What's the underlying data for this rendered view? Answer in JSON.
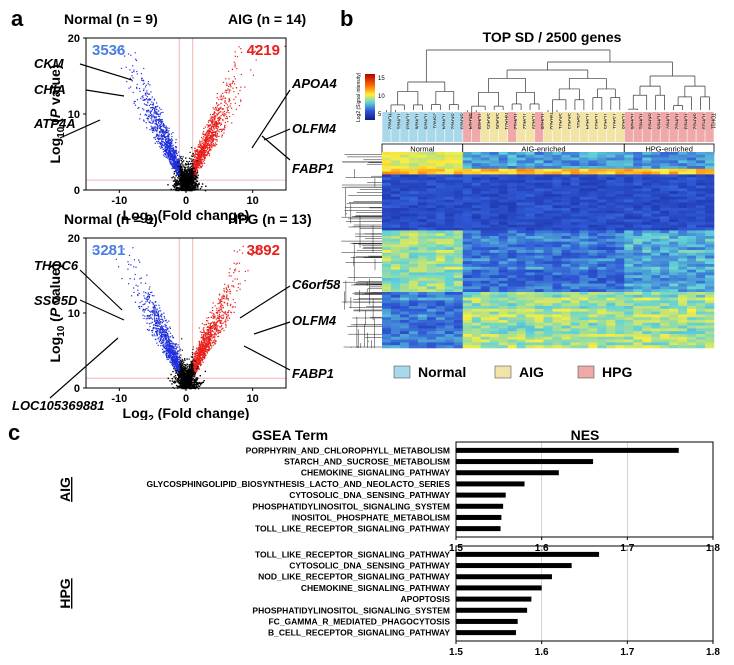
{
  "panel_letters": {
    "a": "a",
    "b": "b",
    "c": "c"
  },
  "panel_a": {
    "plots": [
      {
        "group_left": "Normal (n = 9)",
        "group_right": "AIG (n = 14)",
        "count_down": "3536",
        "count_up": "4219",
        "genes_left": [
          "CKM",
          "CHIA",
          "ATP4A"
        ],
        "genes_right": [
          "APOA4",
          "OLFM4",
          "FABP1"
        ],
        "seed": 11
      },
      {
        "group_left": "Normal (n = 9)",
        "group_right": "HPG (n = 13)",
        "count_down": "3281",
        "count_up": "3892",
        "genes_left": [
          "THOC6",
          "SSC5D",
          "LOC105369881"
        ],
        "genes_right": [
          "C6orf58",
          "OLFM4",
          "FABP1"
        ],
        "seed": 29
      }
    ],
    "y_ticks": [
      "0",
      "10",
      "20"
    ],
    "x_ticks": [
      "-10",
      "0",
      "10"
    ],
    "ylabel_prefix": "Log",
    "ylabel_sub": "10",
    "ylabel_mid": " (",
    "ylabel_italic": "P",
    "ylabel_suffix": " value)",
    "xlabel_prefix": "Log",
    "xlabel_sub": "2",
    "xlabel_suffix": " (Fold change)",
    "colors": {
      "down": "#1f2fdc",
      "up": "#e8201c",
      "ns": "#000000",
      "count_down": "#4a7fe0",
      "count_up": "#e8201c"
    }
  },
  "panel_b": {
    "title": "TOP SD / 2500 genes",
    "colorbar_label": "Log2 (Signal intensity)",
    "colorbar_ticks": [
      "15",
      "10",
      "5"
    ],
    "groups": [
      "Normal",
      "AIG-enriched",
      "HPG-enriched"
    ],
    "samples": [
      "TDN02",
      "TDN01",
      "TDN03",
      "TDN06",
      "TDN05",
      "JSN01",
      "TDN04",
      "SKN02",
      "SKN03",
      "SKH04",
      "TDH09",
      "SKA05",
      "SKA06",
      "NRA01",
      "TDH12",
      "TDA02",
      "TDA09",
      "TDH08",
      "NRA02",
      "SKA01",
      "SKA03",
      "JSA01",
      "TDA04",
      "TDA03",
      "TDA05",
      "TSA01",
      "TDA08",
      "TDH06",
      "TDH01",
      "SKH03",
      "TDH05",
      "TDH07",
      "TDH02",
      "TDH03",
      "SKH02",
      "TDH10",
      "TDH11"
    ],
    "legend": [
      {
        "label": "Normal",
        "color": "#a9d8ea"
      },
      {
        "label": "AIG",
        "color": "#f2e3a6"
      },
      {
        "label": "HPG",
        "color": "#f0a9a9"
      }
    ]
  },
  "panel_c": {
    "header_term": "GSEA Term",
    "header_nes": "NES",
    "x_ticks": [
      "1.5",
      "1.6",
      "1.7",
      "1.8"
    ],
    "x_range": [
      1.5,
      1.8
    ],
    "groups": [
      {
        "label": "AIG",
        "terms": [
          {
            "name": "PORPHYRIN_AND_CHLOROPHYLL_METABOLISM",
            "nes": 1.76
          },
          {
            "name": "STARCH_AND_SUCROSE_METABOLISM",
            "nes": 1.66
          },
          {
            "name": "CHEMOKINE_SIGNALING_PATHWAY",
            "nes": 1.62
          },
          {
            "name": "GLYCOSPHINGOLIPID_BIOSYNTHESIS_LACTO_AND_NEOLACTO_SERIES",
            "nes": 1.58
          },
          {
            "name": "CYTOSOLIC_DNA_SENSING_PATHWAY",
            "nes": 1.558
          },
          {
            "name": "PHOSPHATIDYLINOSITOL_SIGNALING_SYSTEM",
            "nes": 1.555
          },
          {
            "name": "INOSITOL_PHOSPHATE_METABOLISM",
            "nes": 1.553
          },
          {
            "name": "TOLL_LIKE_RECEPTOR_SIGNALING_PATHWAY",
            "nes": 1.552
          }
        ]
      },
      {
        "label": "HPG",
        "terms": [
          {
            "name": "TOLL_LIKE_RECEPTOR_SIGNALING_PATHWAY",
            "nes": 1.667
          },
          {
            "name": "CYTOSOLIC_DNA_SENSING_PATHWAY",
            "nes": 1.635
          },
          {
            "name": "NOD_LIKE_RECEPTOR_SIGNALING_PATHWAY",
            "nes": 1.612
          },
          {
            "name": "CHEMOKINE_SIGNALING_PATHWAY",
            "nes": 1.6
          },
          {
            "name": "APOPTOSIS",
            "nes": 1.588
          },
          {
            "name": "PHOSPHATIDYLINOSITOL_SIGNALING_SYSTEM",
            "nes": 1.583
          },
          {
            "name": "FC_GAMMA_R_MEDIATED_PHAGOCYTOSIS",
            "nes": 1.572
          },
          {
            "name": "B_CELL_RECEPTOR_SIGNALING_PATHWAY",
            "nes": 1.57
          }
        ]
      }
    ]
  },
  "chart_data": [
    {
      "type": "scatter",
      "title": "Normal (n = 9) vs AIG (n = 14)",
      "xlabel": "Log2 (Fold change)",
      "ylabel": "Log10 (P value)",
      "xlim": [
        -15,
        15
      ],
      "ylim": [
        0,
        20
      ],
      "series": [
        {
          "name": "down",
          "count": 3536
        },
        {
          "name": "up",
          "count": 4219
        }
      ]
    },
    {
      "type": "scatter",
      "title": "Normal (n = 9) vs HPG (n = 13)",
      "xlabel": "Log2 (Fold change)",
      "ylabel": "Log10 (P value)",
      "xlim": [
        -15,
        15
      ],
      "ylim": [
        0,
        20
      ],
      "series": [
        {
          "name": "down",
          "count": 3281
        },
        {
          "name": "up",
          "count": 3892
        }
      ]
    },
    {
      "type": "heatmap",
      "title": "TOP SD / 2500 genes",
      "groups": [
        "Normal",
        "AIG-enriched",
        "HPG-enriched"
      ]
    },
    {
      "type": "bar",
      "title": "NES",
      "xlim": [
        1.5,
        1.8
      ],
      "series": [
        {
          "name": "AIG",
          "categories": [
            "PORPHYRIN_AND_CHLOROPHYLL_METABOLISM",
            "STARCH_AND_SUCROSE_METABOLISM",
            "CHEMOKINE_SIGNALING_PATHWAY",
            "GLYCOSPHINGOLIPID_BIOSYNTHESIS_LACTO_AND_NEOLACTO_SERIES",
            "CYTOSOLIC_DNA_SENSING_PATHWAY",
            "PHOSPHATIDYLINOSITOL_SIGNALING_SYSTEM",
            "INOSITOL_PHOSPHATE_METABOLISM",
            "TOLL_LIKE_RECEPTOR_SIGNALING_PATHWAY"
          ],
          "values": [
            1.76,
            1.66,
            1.62,
            1.58,
            1.558,
            1.555,
            1.553,
            1.552
          ]
        },
        {
          "name": "HPG",
          "categories": [
            "TOLL_LIKE_RECEPTOR_SIGNALING_PATHWAY",
            "CYTOSOLIC_DNA_SENSING_PATHWAY",
            "NOD_LIKE_RECEPTOR_SIGNALING_PATHWAY",
            "CHEMOKINE_SIGNALING_PATHWAY",
            "APOPTOSIS",
            "PHOSPHATIDYLINOSITOL_SIGNALING_SYSTEM",
            "FC_GAMMA_R_MEDIATED_PHAGOCYTOSIS",
            "B_CELL_RECEPTOR_SIGNALING_PATHWAY"
          ],
          "values": [
            1.667,
            1.635,
            1.612,
            1.6,
            1.588,
            1.583,
            1.572,
            1.57
          ]
        }
      ]
    }
  ]
}
